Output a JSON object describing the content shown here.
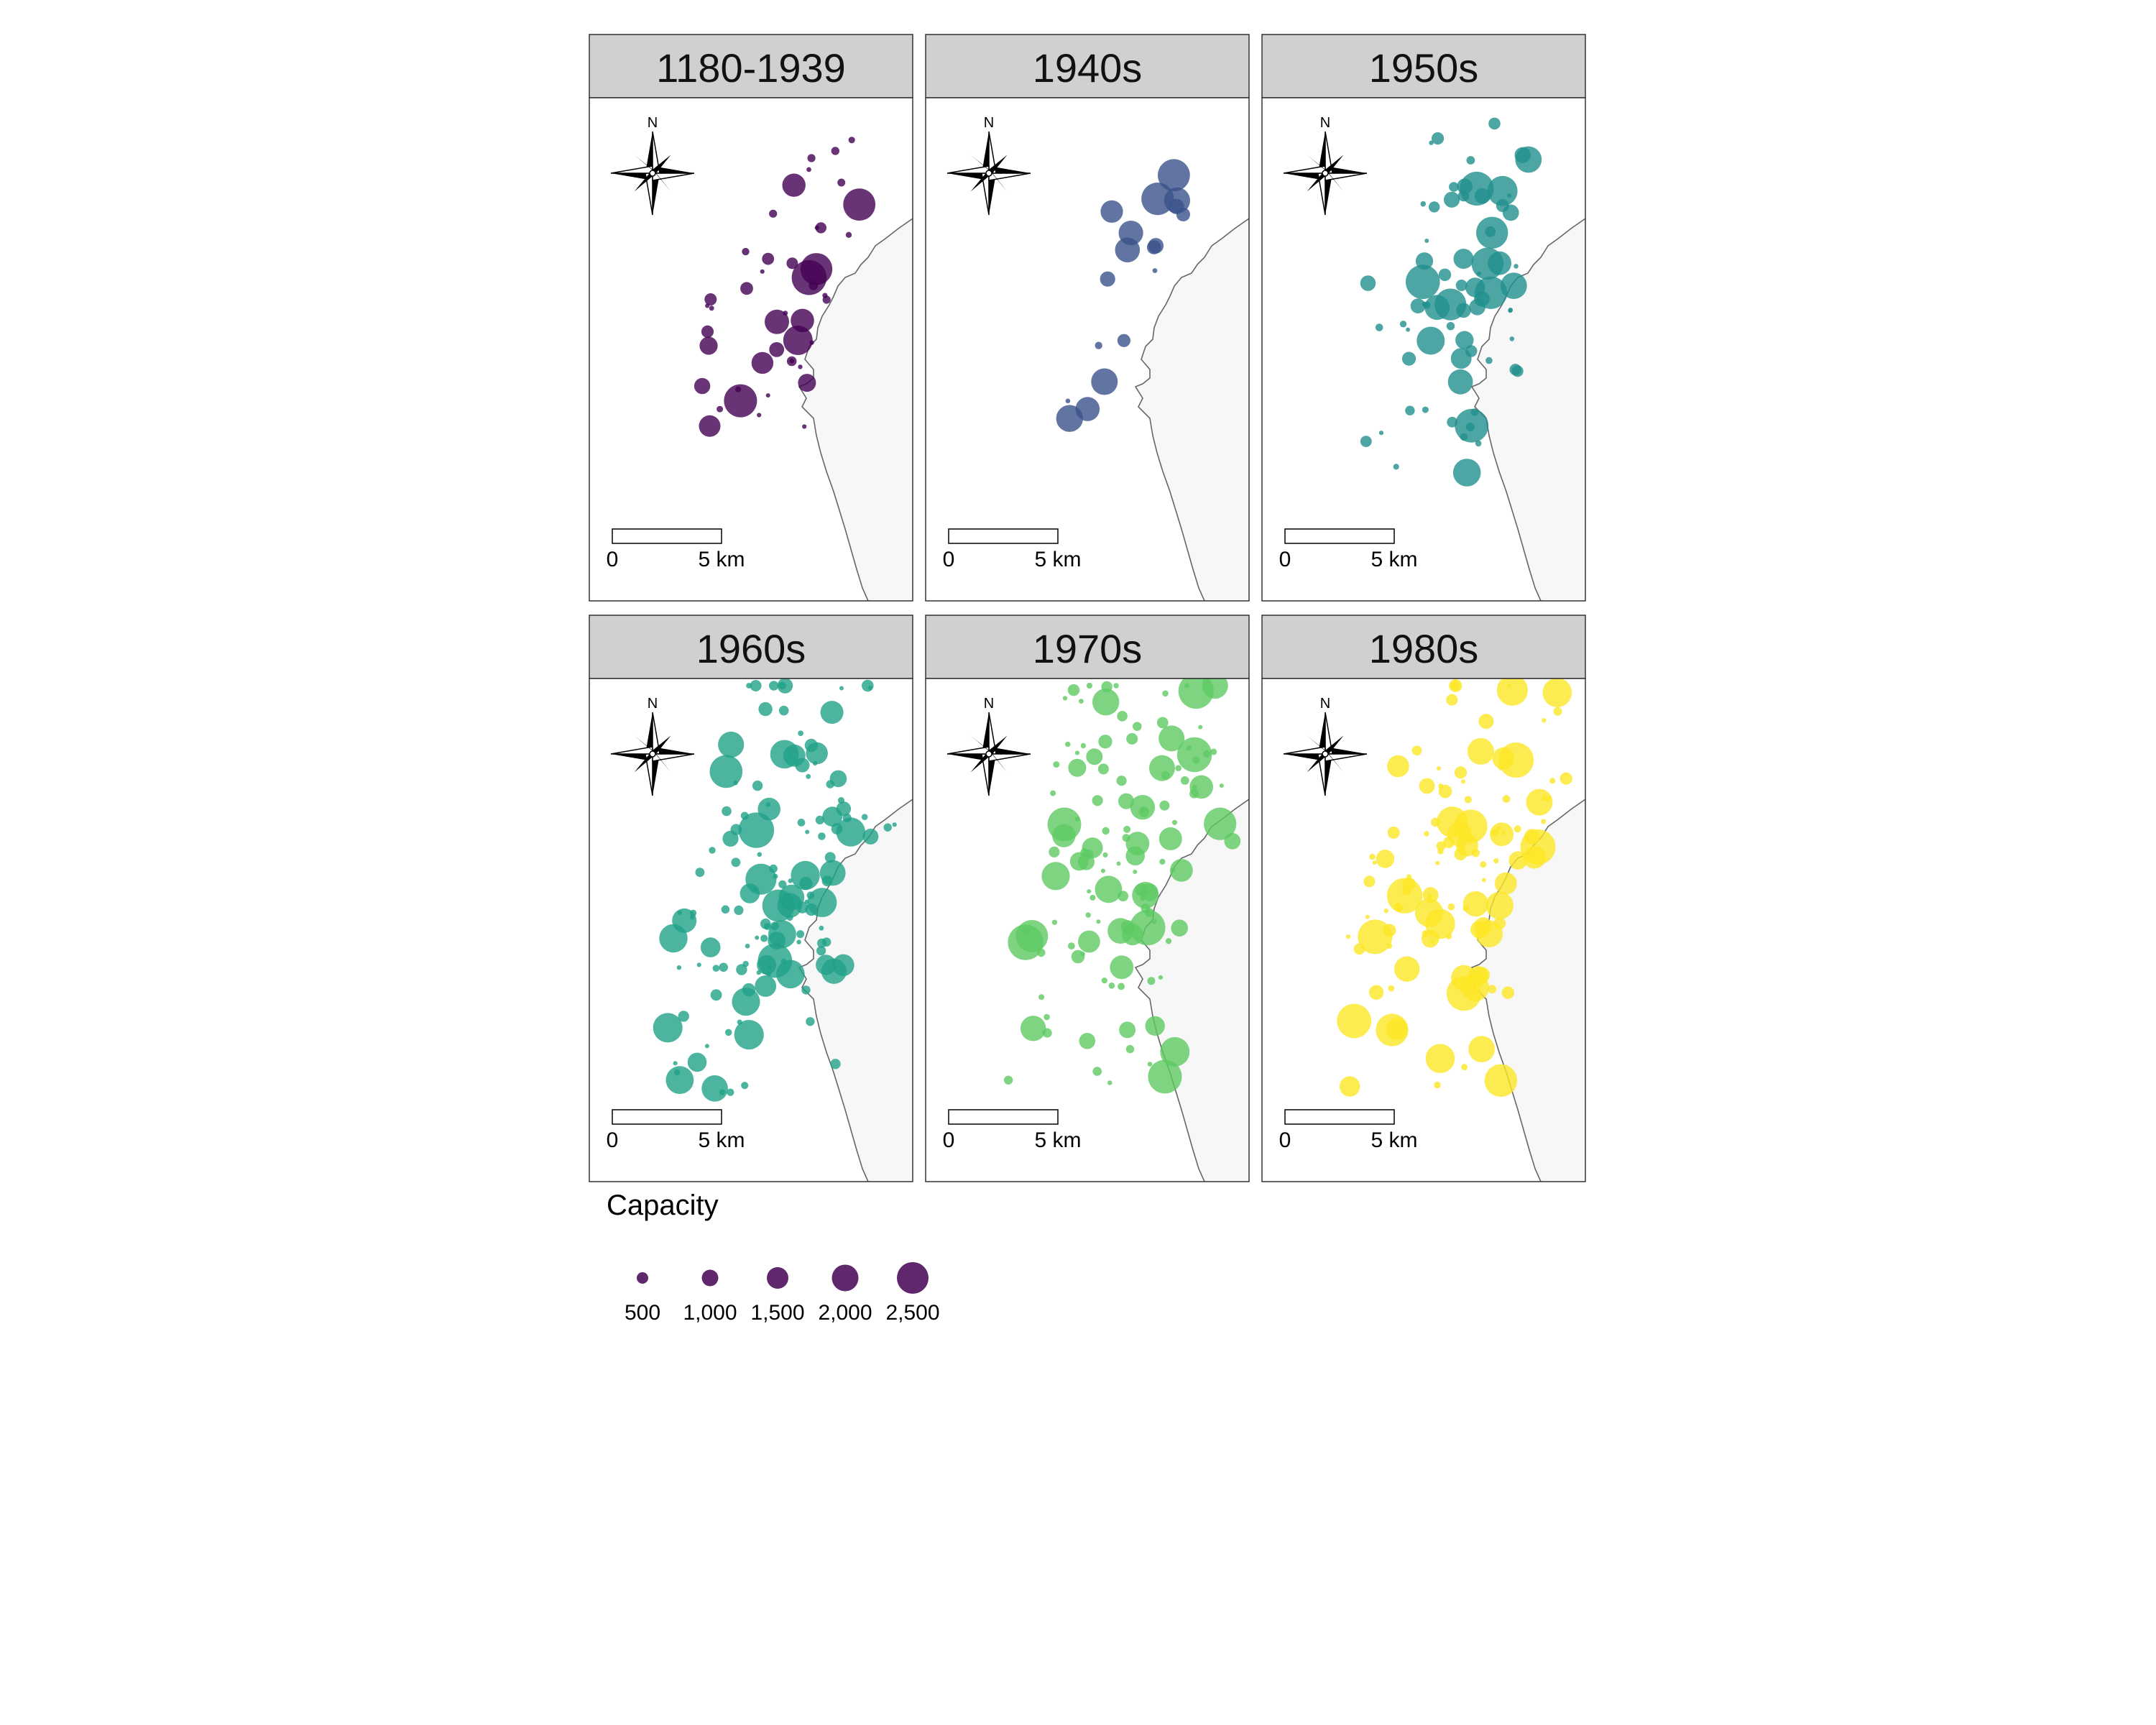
{
  "map": {
    "panels": [
      {
        "label": "1180-1939",
        "color": "#440154",
        "density": 40,
        "count": 45
      },
      {
        "label": "1940s",
        "color": "#3b528b",
        "density": 12,
        "count": 18
      },
      {
        "label": "1950s",
        "color": "#21908c",
        "density": 55,
        "count": 70
      },
      {
        "label": "1960s",
        "color": "#1fa187",
        "density": 95,
        "count": 130
      },
      {
        "label": "1970s",
        "color": "#5ec962",
        "density": 90,
        "count": 120
      },
      {
        "label": "1980s",
        "color": "#fde725",
        "density": 85,
        "count": 110
      }
    ],
    "north_label": "N",
    "scale_bar": {
      "start_label": "0",
      "end_label": "5 km"
    },
    "legend": {
      "title": "Capacity",
      "color": "#440154",
      "entries": [
        {
          "value": 500,
          "label": "500"
        },
        {
          "value": 1000,
          "label": "1,000"
        },
        {
          "value": 1500,
          "label": "1,500"
        },
        {
          "value": 2000,
          "label": "2,000"
        },
        {
          "value": 2500,
          "label": "2,500"
        }
      ]
    }
  }
}
